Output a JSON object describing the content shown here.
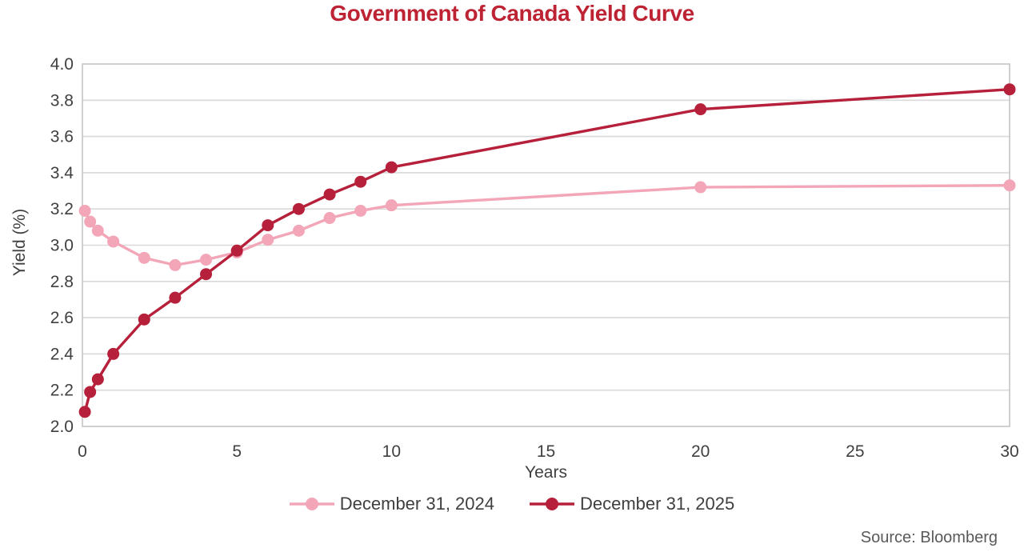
{
  "chart_data": {
    "type": "line",
    "title": "Government of Canada Yield Curve",
    "xlabel": "Years",
    "ylabel": "Yield (%)",
    "xlim": [
      0,
      30
    ],
    "ylim": [
      2.0,
      4.0
    ],
    "x_ticks": [
      0,
      5,
      10,
      15,
      20,
      25,
      30
    ],
    "y_ticks": [
      2.0,
      2.2,
      2.4,
      2.6,
      2.8,
      3.0,
      3.2,
      3.4,
      3.6,
      3.8,
      4.0
    ],
    "grid": "horizontal",
    "legend_position": "bottom",
    "x": [
      0.08,
      0.25,
      0.5,
      1,
      2,
      3,
      4,
      5,
      6,
      7,
      8,
      9,
      10,
      20,
      30
    ],
    "series": [
      {
        "name": "December 31, 2024",
        "color": "#F2A6B8",
        "values": [
          3.19,
          3.13,
          3.08,
          3.02,
          2.93,
          2.89,
          2.92,
          2.96,
          3.03,
          3.08,
          3.15,
          3.19,
          3.22,
          3.32,
          3.33
        ]
      },
      {
        "name": "December 31, 2025",
        "color": "#B6203A",
        "values": [
          2.08,
          2.19,
          2.26,
          2.4,
          2.59,
          2.71,
          2.84,
          2.97,
          3.11,
          3.2,
          3.28,
          3.35,
          3.43,
          3.75,
          3.86
        ]
      }
    ],
    "source": "Source: Bloomberg"
  },
  "colors": {
    "title": "#BE2334",
    "axis_text": "#404040",
    "legend_text": "#3F3F3F",
    "source_text": "#595959",
    "grid": "#D9D9D9",
    "plot_border": "#C4C4C4",
    "background": "#FFFFFF"
  }
}
